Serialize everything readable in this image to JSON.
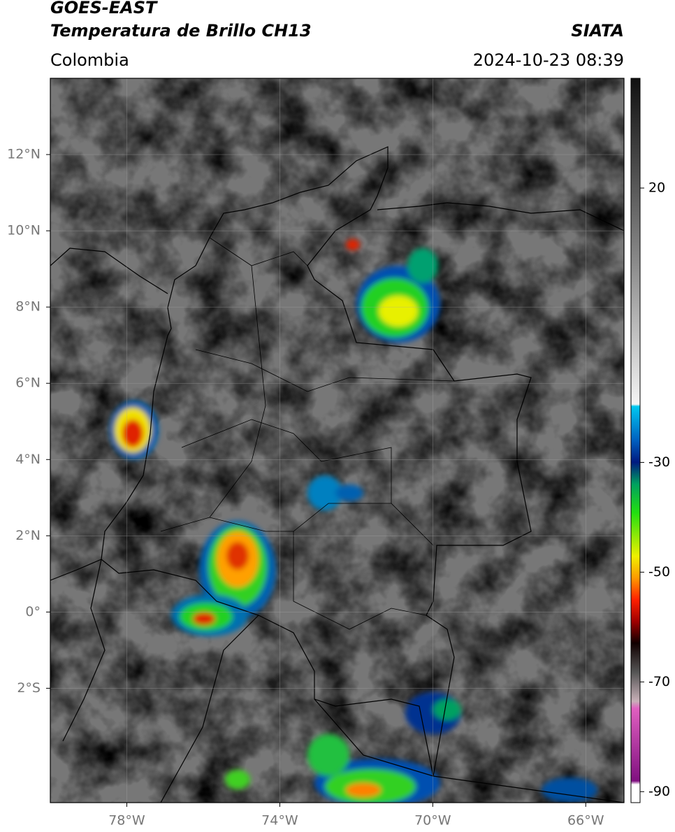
{
  "header": {
    "title": "GOES-EAST",
    "subtitle": "Temperatura de Brillo CH13",
    "source": "SIATA",
    "region": "Colombia",
    "datetime": "2024-10-23 08:39"
  },
  "map": {
    "xlim": [
      -80,
      -65
    ],
    "ylim": [
      -5,
      14
    ],
    "xticks": [
      {
        "value": -78,
        "label": "78°W"
      },
      {
        "value": -74,
        "label": "74°W"
      },
      {
        "value": -70,
        "label": "70°W"
      },
      {
        "value": -66,
        "label": "66°W"
      }
    ],
    "yticks": [
      {
        "value": 12,
        "label": "12°N"
      },
      {
        "value": 10,
        "label": "10°N"
      },
      {
        "value": 8,
        "label": "8°N"
      },
      {
        "value": 6,
        "label": "6°N"
      },
      {
        "value": 4,
        "label": "4°N"
      },
      {
        "value": 2,
        "label": "2°N"
      },
      {
        "value": 0,
        "label": "0°"
      },
      {
        "value": -2,
        "label": "2°S"
      }
    ],
    "grid": true
  },
  "colorbar": {
    "ylim": [
      -92,
      40
    ],
    "yticks": [
      20,
      -30,
      -50,
      -70,
      -90
    ]
  }
}
